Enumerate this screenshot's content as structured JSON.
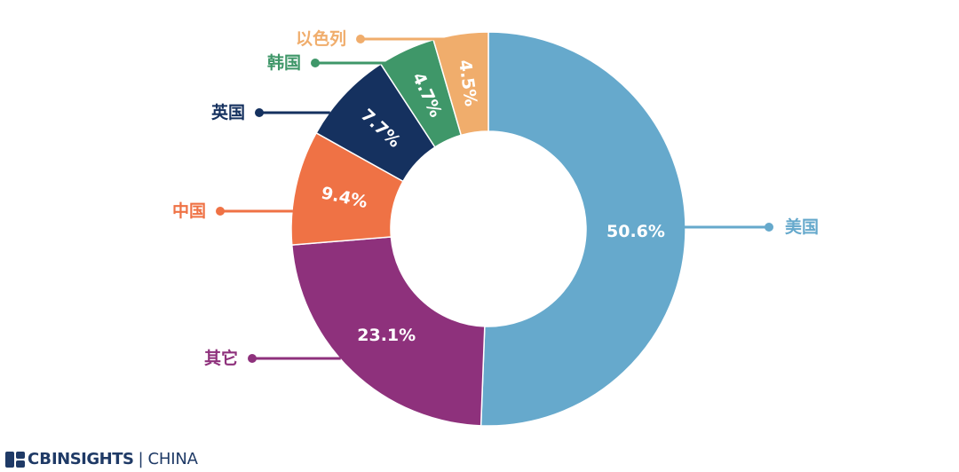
{
  "chart_data": {
    "type": "pie",
    "variant": "donut",
    "title": "",
    "legend": "leader-lines",
    "slices": [
      {
        "label": "美国",
        "value": 50.6,
        "display": "50.6%",
        "color": "#66a9cc"
      },
      {
        "label": "其它",
        "value": 23.1,
        "display": "23.1%",
        "color": "#8e317c"
      },
      {
        "label": "中国",
        "value": 9.4,
        "display": "9.4%",
        "color": "#ef7245"
      },
      {
        "label": "英国",
        "value": 7.7,
        "display": "7.7%",
        "color": "#15315f"
      },
      {
        "label": "韩国",
        "value": 4.7,
        "display": "4.7%",
        "color": "#3f9769"
      },
      {
        "label": "以色列",
        "value": 4.5,
        "display": "4.5%",
        "color": "#f0ad6c"
      }
    ]
  },
  "brand": {
    "cb": "CB",
    "name": "INSIGHTS",
    "separator": "|",
    "region": "CHINA",
    "color": "#1f3a66"
  }
}
